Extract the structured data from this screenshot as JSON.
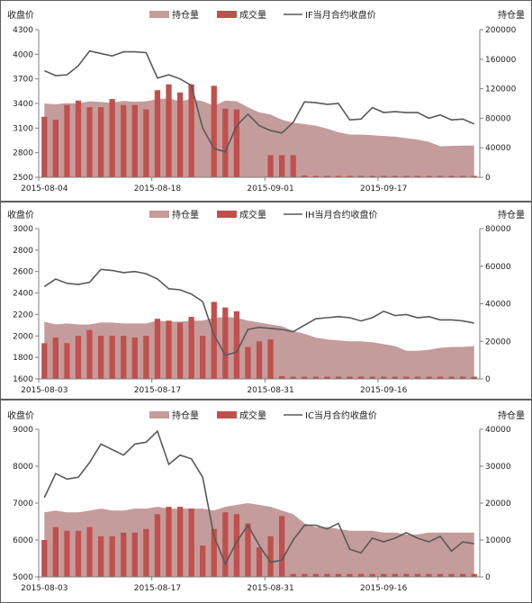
{
  "chart_data": [
    {
      "type": "bar+area+line",
      "left_axis_label": "收盘价",
      "right_axis_label": "持仓量",
      "legend": {
        "oi": "持仓量",
        "vol": "成交量",
        "price": "IF当月合约收盘价"
      },
      "ylim_left": [
        2500,
        4300
      ],
      "yticks_left": [
        2500,
        2800,
        3100,
        3400,
        3700,
        4000,
        4300
      ],
      "ylim_right": [
        0,
        200000
      ],
      "yticks_right": [
        0,
        40000,
        80000,
        120000,
        160000,
        200000
      ],
      "x_ticks": [
        {
          "i": 0,
          "label": "2015-08-04"
        },
        {
          "i": 10,
          "label": "2015-08-18"
        },
        {
          "i": 20,
          "label": "2015-09-01"
        },
        {
          "i": 30,
          "label": "2015-09-17"
        }
      ],
      "n": 39,
      "open_interest": [
        100000,
        99000,
        100500,
        100000,
        103000,
        102000,
        101000,
        103500,
        102500,
        103000,
        106000,
        107000,
        103000,
        106000,
        103000,
        97000,
        104000,
        103000,
        95000,
        88000,
        85000,
        78000,
        74000,
        72000,
        70000,
        66000,
        61000,
        58000,
        58000,
        57000,
        56000,
        55000,
        53000,
        51000,
        48000,
        42000,
        42500,
        43000,
        43000
      ],
      "volume": [
        82000,
        78000,
        98000,
        104000,
        95000,
        95000,
        106000,
        98000,
        98000,
        92000,
        118000,
        126000,
        115000,
        126000,
        0,
        124000,
        93000,
        92000,
        0,
        0,
        30000,
        30000,
        30000,
        2500,
        2000,
        2000,
        2000,
        2000,
        2000,
        2000,
        2000,
        2000,
        2000,
        2000,
        2000,
        2000,
        2000,
        2000,
        2000
      ],
      "close": [
        3800,
        3740,
        3750,
        3860,
        4040,
        4010,
        3980,
        4030,
        4030,
        4020,
        3710,
        3750,
        3700,
        3620,
        3100,
        2850,
        2810,
        3130,
        3270,
        3130,
        3070,
        3040,
        3170,
        3420,
        3410,
        3390,
        3400,
        3200,
        3210,
        3350,
        3290,
        3300,
        3290,
        3290,
        3220,
        3260,
        3200,
        3210,
        3150
      ]
    },
    {
      "type": "bar+area+line",
      "left_axis_label": "收盘价",
      "right_axis_label": "持仓量",
      "legend": {
        "oi": "持仓量",
        "vol": "成交量",
        "price": "IH当月合约收盘价"
      },
      "ylim_left": [
        1600,
        3000
      ],
      "yticks_left": [
        1600,
        1800,
        2000,
        2200,
        2400,
        2600,
        2800,
        3000
      ],
      "ylim_right": [
        0,
        80000
      ],
      "yticks_right": [
        0,
        20000,
        40000,
        60000,
        80000
      ],
      "x_ticks": [
        {
          "i": 0,
          "label": "2015-08-03"
        },
        {
          "i": 10,
          "label": "2015-08-17"
        },
        {
          "i": 20,
          "label": "2015-08-31"
        },
        {
          "i": 30,
          "label": "2015-09-16"
        }
      ],
      "n": 39,
      "open_interest": [
        30500,
        29000,
        29500,
        29000,
        29000,
        30000,
        30000,
        29500,
        29500,
        29500,
        31000,
        30500,
        30500,
        31000,
        31000,
        32500,
        33000,
        32500,
        31000,
        30000,
        29000,
        28000,
        25500,
        24000,
        22000,
        21000,
        20500,
        20000,
        20000,
        19500,
        18500,
        17500,
        15000,
        15000,
        15500,
        16500,
        17000,
        17000,
        17500
      ],
      "volume": [
        19000,
        22000,
        19000,
        23000,
        26000,
        23000,
        23000,
        23000,
        22000,
        23000,
        32000,
        31000,
        30000,
        33000,
        23000,
        41000,
        38000,
        36000,
        17000,
        20000,
        21000,
        1500,
        1200,
        1200,
        1200,
        1200,
        1200,
        1200,
        1200,
        1200,
        1200,
        1200,
        1200,
        1200,
        1200,
        1200,
        1200,
        1200,
        1200
      ],
      "close": [
        2460,
        2530,
        2490,
        2480,
        2500,
        2620,
        2610,
        2590,
        2600,
        2580,
        2530,
        2440,
        2430,
        2390,
        2320,
        2010,
        1820,
        1850,
        2060,
        2080,
        2070,
        2060,
        2040,
        2100,
        2160,
        2170,
        2180,
        2170,
        2140,
        2170,
        2230,
        2190,
        2200,
        2170,
        2180,
        2150,
        2150,
        2140,
        2120
      ]
    },
    {
      "type": "bar+area+line",
      "left_axis_label": "收盘价",
      "right_axis_label": "持仓量",
      "legend": {
        "oi": "持仓量",
        "vol": "成交量",
        "price": "IC当月合约收盘价"
      },
      "ylim_left": [
        5000,
        9000
      ],
      "yticks_left": [
        5000,
        6000,
        7000,
        8000,
        9000
      ],
      "ylim_right": [
        0,
        40000
      ],
      "yticks_right": [
        0,
        10000,
        20000,
        30000,
        40000
      ],
      "x_ticks": [
        {
          "i": 0,
          "label": "2015-08-03"
        },
        {
          "i": 10,
          "label": "2015-08-17"
        },
        {
          "i": 20,
          "label": "2015-08-31"
        },
        {
          "i": 30,
          "label": "2015-09-16"
        }
      ],
      "n": 39,
      "open_interest": [
        17500,
        18000,
        17500,
        17500,
        18000,
        18500,
        18000,
        18000,
        18500,
        18500,
        19000,
        18500,
        18500,
        18500,
        18500,
        18000,
        19000,
        19500,
        20000,
        19500,
        19000,
        18000,
        17000,
        14500,
        13500,
        13500,
        13000,
        12500,
        12500,
        12500,
        12000,
        12000,
        11500,
        11500,
        12000,
        12000,
        12000,
        12000,
        12000
      ],
      "volume": [
        10000,
        13500,
        12500,
        12500,
        13500,
        11000,
        11000,
        12000,
        12000,
        13000,
        17000,
        19000,
        19000,
        18500,
        8500,
        13000,
        17500,
        17000,
        14500,
        8000,
        11000,
        16500,
        800,
        800,
        800,
        800,
        800,
        800,
        800,
        800,
        800,
        800,
        800,
        800,
        800,
        800,
        800,
        800,
        800
      ],
      "close": [
        7150,
        7800,
        7650,
        7700,
        8100,
        8600,
        8450,
        8300,
        8600,
        8650,
        8950,
        8050,
        8300,
        8200,
        7700,
        6100,
        5350,
        5950,
        6400,
        5850,
        5400,
        5450,
        6000,
        6400,
        6400,
        6300,
        6450,
        5750,
        5650,
        6050,
        5950,
        6050,
        6200,
        6050,
        5950,
        6100,
        5700,
        5950,
        5900
      ]
    }
  ]
}
